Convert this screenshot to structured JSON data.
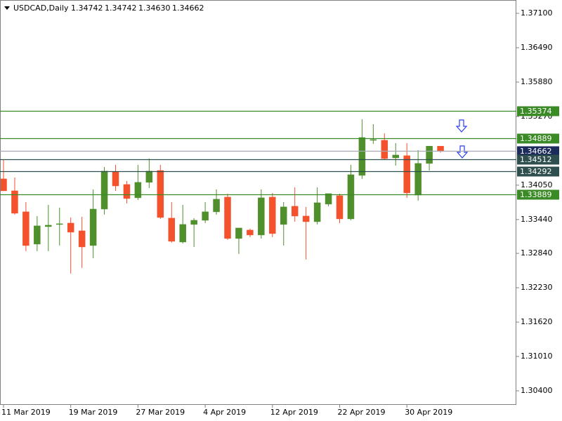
{
  "chart_data": {
    "type": "candlestick",
    "title": "USDCAD,Daily",
    "quote": [
      "1.34742",
      "1.34742",
      "1.34630",
      "1.34662"
    ],
    "categories": [
      "11 Mar 2019",
      null,
      null,
      null,
      null,
      null,
      "19 Mar 2019",
      null,
      null,
      null,
      null,
      null,
      "27 Mar 2019",
      null,
      null,
      null,
      null,
      null,
      "4 Apr 2019",
      null,
      null,
      null,
      null,
      null,
      "12 Apr 2019",
      null,
      null,
      null,
      null,
      null,
      "22 Apr 2019",
      null,
      null,
      null,
      null,
      null,
      "30 Apr 2019",
      null,
      null,
      null
    ],
    "open": [
      1.34162,
      1.3395,
      1.33577,
      1.33004,
      1.33315,
      1.33353,
      1.33377,
      1.3324,
      1.32979,
      1.33626,
      1.34286,
      1.34062,
      1.33826,
      1.341,
      1.34311,
      1.33465,
      1.33041,
      1.33353,
      1.33427,
      1.33577,
      1.33838,
      1.33104,
      1.33253,
      1.33166,
      1.33838,
      1.33353,
      1.33676,
      1.33502,
      1.33402,
      1.33714,
      1.33863,
      1.33452,
      1.34224,
      1.34847,
      1.34847,
      1.34535,
      1.34573,
      1.33875,
      1.34436,
      1.34742
    ],
    "high": [
      1.34498,
      1.34187,
      1.33751,
      1.33502,
      1.33701,
      1.33651,
      1.33477,
      1.33489,
      1.33975,
      1.34373,
      1.34411,
      1.34124,
      1.34411,
      1.34523,
      1.34411,
      1.33751,
      1.33701,
      1.33465,
      1.33751,
      1.33975,
      1.339,
      1.3329,
      1.33278,
      1.33975,
      1.33913,
      1.33751,
      1.34012,
      1.33664,
      1.34012,
      1.339,
      1.339,
      1.34411,
      1.3522,
      1.35133,
      1.34971,
      1.34797,
      1.34797,
      1.34672,
      1.34747,
      1.34742
    ],
    "low": [
      1.3395,
      1.33527,
      1.32879,
      1.32879,
      1.32879,
      1.32979,
      1.32481,
      1.32581,
      1.32755,
      1.33527,
      1.3395,
      1.33726,
      1.33788,
      1.34,
      1.33452,
      1.33029,
      1.33016,
      1.32954,
      1.33377,
      1.33527,
      1.33079,
      1.3283,
      1.33128,
      1.33104,
      1.33128,
      1.32979,
      1.33402,
      1.3273,
      1.33353,
      1.33676,
      1.33377,
      1.33427,
      1.34162,
      1.34784,
      1.34498,
      1.34398,
      1.33826,
      1.33776,
      1.34311,
      1.3463
    ],
    "close": [
      1.3395,
      1.33552,
      1.32979,
      1.33328,
      1.3334,
      1.33365,
      1.33216,
      1.32954,
      1.33626,
      1.34299,
      1.34037,
      1.33813,
      1.341,
      1.34299,
      1.33477,
      1.33054,
      1.33353,
      1.33427,
      1.33577,
      1.33801,
      1.33104,
      1.3329,
      1.33166,
      1.33826,
      1.33191,
      1.33664,
      1.33502,
      1.33402,
      1.33738,
      1.339,
      1.33452,
      1.34236,
      1.34896,
      1.34859,
      1.34523,
      1.34585,
      1.33913,
      1.34436,
      1.34742,
      1.34662
    ],
    "up_color": "#4f8f2c",
    "down_color": "#f4522d",
    "ylim": [
      1.30151,
      1.37287
    ],
    "yticks": [
      {
        "value": 1.371,
        "label": "1.37100"
      },
      {
        "value": 1.3649,
        "label": "1.36490"
      },
      {
        "value": 1.3588,
        "label": "1.35880"
      },
      {
        "value": 1.3527,
        "label": "1.35270"
      },
      {
        "value": 1.3405,
        "label": "1.34050"
      },
      {
        "value": 1.3344,
        "label": "1.33440"
      },
      {
        "value": 1.3284,
        "label": "1.32840"
      },
      {
        "value": 1.3223,
        "label": "1.32230"
      },
      {
        "value": 1.3162,
        "label": "1.31620"
      },
      {
        "value": 1.3101,
        "label": "1.31010"
      },
      {
        "value": 1.304,
        "label": "1.30400"
      }
    ],
    "levels": [
      1.35374,
      1.34889,
      1.34662,
      1.34512,
      1.34292,
      1.33889
    ],
    "level_line_colors": [
      "#3a8a26",
      "#3a8a26",
      "#a9a9b4",
      "#2f4f4f",
      "#2f4f4f",
      "#3a8a26"
    ],
    "level_label_colors": [
      "#3a8a26",
      "#3a8a26",
      "#1c2a5c",
      "#2f4f4f",
      "#2f4f4f",
      "#3a8a26"
    ],
    "grid": false
  }
}
